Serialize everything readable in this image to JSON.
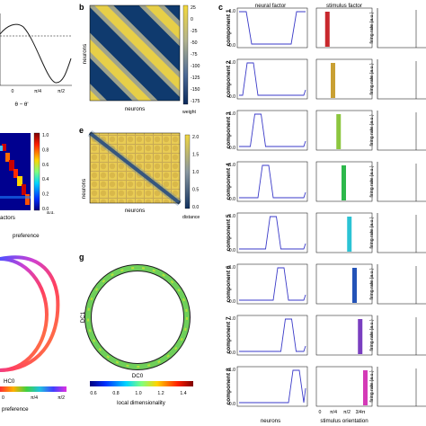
{
  "panel_labels": {
    "b": "b",
    "c": "c",
    "e": "e",
    "g": "g"
  },
  "panel_a": {
    "xticks": [
      "0",
      "π/4",
      "π/2"
    ],
    "xlabel": "θ − θ'"
  },
  "panel_b": {
    "xlabel": "neurons",
    "ylabel": "neurons",
    "colorbar_label": "weight",
    "colorbar_ticks": [
      "25",
      "0",
      "-25",
      "-50",
      "-75",
      "-100",
      "-125",
      "-150",
      "-175"
    ]
  },
  "panel_d": {
    "colorbar_ticks": [
      "1.0",
      "0.8",
      "0.6",
      "0.4",
      "0.2",
      "0.0"
    ],
    "colorbar_label": "a.u.",
    "xlabel_fragment": "actors"
  },
  "panel_e": {
    "xlabel": "neurons",
    "ylabel": "neurons",
    "colorbar_label": "distance",
    "colorbar_ticks": [
      "2.0",
      "1.5",
      "1.0",
      "0.5",
      "0.0"
    ]
  },
  "panel_f": {
    "label_fragment": "preference",
    "axis_fragment": "HC0",
    "colorbar_ticks": [
      "0",
      "π/4",
      "π/2"
    ],
    "colorbar_label_fragment": "preference"
  },
  "panel_g": {
    "xlabel": "DC0",
    "ylabel": "DC1",
    "colorbar_ticks": [
      "0.6",
      "0.8",
      "1.0",
      "1.2",
      "1.4"
    ],
    "colorbar_label": "local dimensionality"
  },
  "panel_c": {
    "col_titles": [
      "neural factor",
      "stimulus factor"
    ],
    "bottom_xlabels": [
      "neurons",
      "stimulus orientation"
    ],
    "yticks": [
      "1.0",
      "0.0"
    ],
    "stim_xticks": [
      "0",
      "π/4",
      "π/2",
      "3/4π"
    ],
    "right_ylabel": "firing rate (a.u.)",
    "components": [
      {
        "name": "component 1",
        "bar_color": "#c8282d",
        "bar_pos": 0.12
      },
      {
        "name": "component 2",
        "bar_color": "#c9a033",
        "bar_pos": 0.25
      },
      {
        "name": "component 3",
        "bar_color": "#8cc63f",
        "bar_pos": 0.38
      },
      {
        "name": "component 4",
        "bar_color": "#2db84b",
        "bar_pos": 0.5
      },
      {
        "name": "component 5",
        "bar_color": "#2bc3d4",
        "bar_pos": 0.63
      },
      {
        "name": "component 6",
        "bar_color": "#2453b8",
        "bar_pos": 0.75
      },
      {
        "name": "component 7",
        "bar_color": "#7a3fc0",
        "bar_pos": 0.88
      },
      {
        "name": "component 8",
        "bar_color": "#d43ab7",
        "bar_pos": 1.0
      }
    ]
  }
}
